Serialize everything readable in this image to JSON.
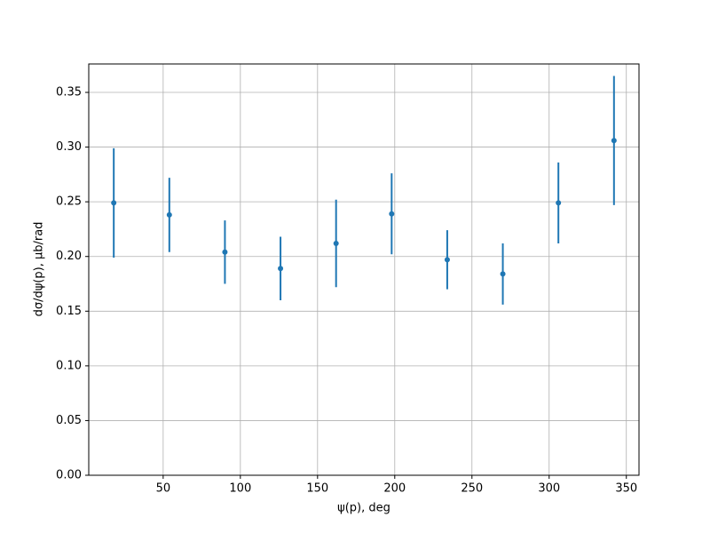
{
  "chart_data": {
    "type": "errorbar",
    "xlabel": "ψ(p), deg",
    "ylabel": "dσ/dψ(p), μb/rad",
    "x": [
      18,
      54,
      90,
      126,
      162,
      198,
      234,
      270,
      306,
      342
    ],
    "values": [
      0.249,
      0.238,
      0.204,
      0.189,
      0.212,
      0.239,
      0.197,
      0.184,
      0.249,
      0.306
    ],
    "errors": [
      0.05,
      0.034,
      0.029,
      0.029,
      0.04,
      0.037,
      0.027,
      0.028,
      0.037,
      0.059
    ],
    "color": "#1f77b4",
    "xlim": [
      1.8,
      358.2
    ],
    "xticks": [
      50,
      100,
      150,
      200,
      250,
      300,
      350
    ],
    "ylim": [
      0,
      0.376
    ],
    "yticks": [
      {
        "value": 0,
        "label": "0.00"
      },
      {
        "value": 0.05,
        "label": "0.05"
      },
      {
        "value": 0.1,
        "label": "0.10"
      },
      {
        "value": 0.15,
        "label": "0.15"
      },
      {
        "value": 0.2,
        "label": "0.20"
      },
      {
        "value": 0.25,
        "label": "0.25"
      },
      {
        "value": 0.3,
        "label": "0.30"
      },
      {
        "value": 0.35,
        "label": "0.35"
      }
    ],
    "grid": true
  }
}
